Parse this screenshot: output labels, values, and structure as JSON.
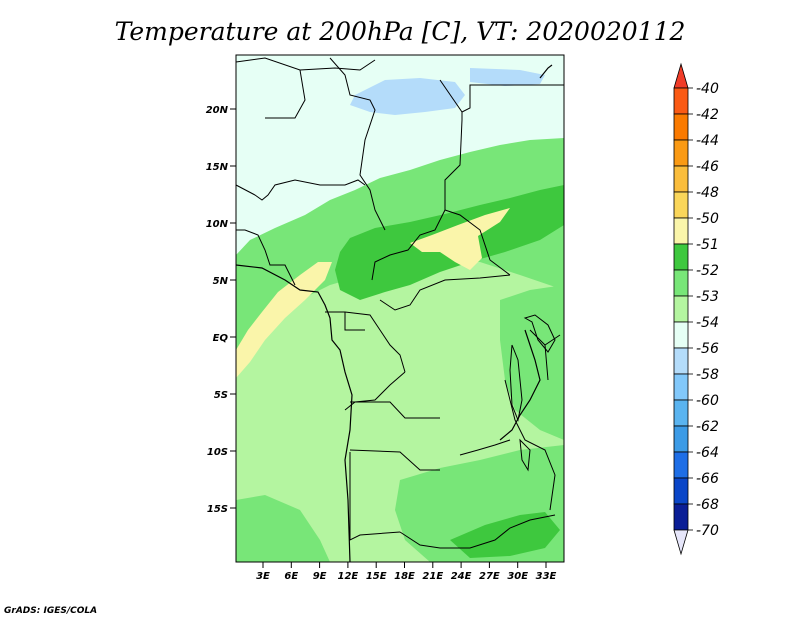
{
  "title": "Temperature at 200hPa [C], VT: 2020020112",
  "credit": "GrADS: IGES/COLA",
  "map": {
    "lat_ticks": [
      "20N",
      "15N",
      "10N",
      "5N",
      "EQ",
      "5S",
      "10S",
      "15S"
    ],
    "lon_ticks": [
      "3E",
      "6E",
      "9E",
      "12E",
      "15E",
      "18E",
      "21E",
      "24E",
      "27E",
      "30E",
      "33E"
    ]
  },
  "colorbar": {
    "labels": [
      "-40",
      "-42",
      "-44",
      "-46",
      "-48",
      "-50",
      "-51",
      "-52",
      "-53",
      "-54",
      "-56",
      "-58",
      "-60",
      "-62",
      "-64",
      "-66",
      "-68",
      "-70"
    ],
    "colors": [
      "#f03c28",
      "#fa5a14",
      "#fa7a00",
      "#fa9a14",
      "#fabd3c",
      "#fad65a",
      "#faf5aa",
      "#3ec83e",
      "#78e678",
      "#b4f5a0",
      "#e6fff5",
      "#b4dcfa",
      "#82c8fa",
      "#5ab4f0",
      "#3c9be6",
      "#1e6ee6",
      "#0a46c8",
      "#0a1e96",
      "#0a0a6e",
      "#e6e6fa"
    ]
  }
}
